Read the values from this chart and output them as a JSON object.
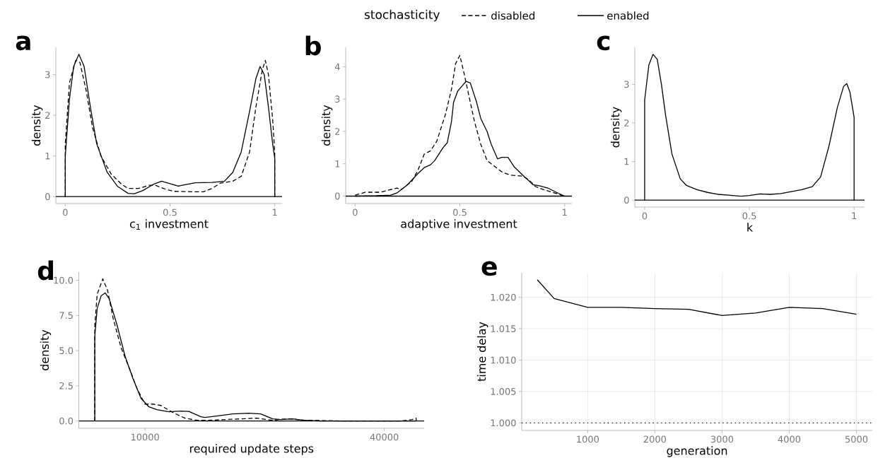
{
  "chart_data": [
    {
      "type": "line",
      "title": "a",
      "xlabel": "c$_{1}$  investment",
      "ylabel": "density",
      "xlim": [
        -0.045,
        1.035
      ],
      "ylim": [
        -0.17,
        3.67
      ],
      "xticks": [
        0,
        0.5,
        1
      ],
      "yticks": [
        0,
        1,
        2,
        3
      ],
      "legend": "top",
      "legend_title": "stochasticity",
      "ref_lines": [
        {
          "axis": "y",
          "value": 0,
          "line_style": "solid",
          "color": "#000000"
        }
      ],
      "series": [
        {
          "name": "disabled",
          "color": "#000000",
          "line_style": "dashed",
          "x": [
            0,
            0,
            0.02,
            0.05,
            0.07,
            0.1,
            0.13,
            0.17,
            0.22,
            0.27,
            0.3,
            0.35,
            0.4,
            0.43,
            0.48,
            0.52,
            0.6,
            0.66,
            0.7,
            0.74,
            0.8,
            0.84,
            0.88,
            0.91,
            0.94,
            0.955,
            0.97,
            0.99,
            1.0,
            1.0
          ],
          "values": [
            0,
            1.3,
            2.8,
            3.35,
            3.3,
            2.6,
            1.7,
            1.0,
            0.55,
            0.3,
            0.2,
            0.2,
            0.28,
            0.28,
            0.18,
            0.13,
            0.12,
            0.12,
            0.2,
            0.33,
            0.38,
            0.5,
            1.1,
            2.2,
            3.1,
            3.35,
            3.0,
            1.9,
            1.1,
            0
          ]
        },
        {
          "name": "enabled",
          "color": "#000000",
          "line_style": "solid",
          "x": [
            0,
            0,
            0.02,
            0.04,
            0.065,
            0.09,
            0.12,
            0.15,
            0.2,
            0.25,
            0.3,
            0.33,
            0.37,
            0.42,
            0.46,
            0.5,
            0.54,
            0.58,
            0.62,
            0.7,
            0.76,
            0.8,
            0.84,
            0.88,
            0.91,
            0.93,
            0.95,
            0.97,
            0.99,
            1.0,
            1.0
          ],
          "values": [
            0,
            1.0,
            2.4,
            3.2,
            3.5,
            3.2,
            2.2,
            1.3,
            0.6,
            0.25,
            0.08,
            0.07,
            0.15,
            0.3,
            0.38,
            0.32,
            0.26,
            0.3,
            0.34,
            0.35,
            0.38,
            0.6,
            1.1,
            2.1,
            2.9,
            3.2,
            3.0,
            2.2,
            1.3,
            0.95,
            0
          ]
        }
      ]
    },
    {
      "type": "line",
      "title": "b",
      "xlabel": "adaptive investment",
      "ylabel": "density",
      "xlim": [
        -0.045,
        1.035
      ],
      "ylim": [
        -0.23,
        4.6
      ],
      "xticks": [
        0,
        0.5,
        1
      ],
      "yticks": [
        0,
        1,
        2,
        3,
        4
      ],
      "ref_lines": [
        {
          "axis": "y",
          "value": 0,
          "line_style": "solid",
          "color": "#000000"
        }
      ],
      "series": [
        {
          "color": "#000000",
          "line_style": "dashed",
          "x": [
            0,
            0.05,
            0.12,
            0.2,
            0.22,
            0.27,
            0.3,
            0.33,
            0.36,
            0.39,
            0.43,
            0.46,
            0.48,
            0.5,
            0.52,
            0.54,
            0.57,
            0.6,
            0.63,
            0.66,
            0.7,
            0.74,
            0.8,
            0.83,
            0.86,
            0.9,
            0.95,
            1.0
          ],
          "values": [
            0.03,
            0.12,
            0.12,
            0.25,
            0.2,
            0.45,
            0.8,
            1.3,
            1.4,
            1.7,
            2.5,
            3.3,
            4.1,
            4.35,
            3.8,
            3.2,
            2.3,
            1.6,
            1.1,
            0.95,
            0.75,
            0.65,
            0.62,
            0.5,
            0.3,
            0.2,
            0.1,
            0.0
          ]
        },
        {
          "color": "#000000",
          "line_style": "solid",
          "x": [
            0,
            0.1,
            0.17,
            0.2,
            0.25,
            0.3,
            0.33,
            0.36,
            0.38,
            0.42,
            0.44,
            0.46,
            0.47,
            0.49,
            0.51,
            0.53,
            0.55,
            0.58,
            0.6,
            0.63,
            0.65,
            0.68,
            0.7,
            0.73,
            0.76,
            0.8,
            0.85,
            0.88,
            0.92,
            0.96,
            1.0
          ],
          "values": [
            0,
            0.01,
            0.03,
            0.1,
            0.35,
            0.7,
            0.88,
            0.97,
            1.1,
            1.5,
            1.65,
            2.3,
            2.9,
            3.25,
            3.4,
            3.55,
            3.5,
            2.9,
            2.4,
            2.0,
            1.6,
            1.15,
            1.2,
            1.2,
            0.9,
            0.65,
            0.35,
            0.32,
            0.25,
            0.12,
            0.0
          ]
        }
      ]
    },
    {
      "type": "line",
      "title": "c",
      "xlabel": "k",
      "ylabel": "density",
      "xlim": [
        -0.047,
        1.05
      ],
      "ylim": [
        -0.18,
        3.96
      ],
      "xticks": [
        0,
        0.5,
        1
      ],
      "yticks": [
        0,
        1,
        2,
        3
      ],
      "ref_lines": [
        {
          "axis": "y",
          "value": 0,
          "line_style": "solid",
          "color": "#000000"
        }
      ],
      "series": [
        {
          "color": "#000000",
          "line_style": "solid",
          "x": [
            0,
            0,
            0.02,
            0.04,
            0.06,
            0.08,
            0.1,
            0.13,
            0.17,
            0.2,
            0.25,
            0.3,
            0.35,
            0.4,
            0.46,
            0.5,
            0.55,
            0.6,
            0.65,
            0.7,
            0.75,
            0.8,
            0.84,
            0.88,
            0.92,
            0.95,
            0.965,
            0.98,
            1.0,
            1.0
          ],
          "values": [
            0,
            2.6,
            3.5,
            3.78,
            3.65,
            3.0,
            2.2,
            1.2,
            0.55,
            0.38,
            0.27,
            0.2,
            0.15,
            0.13,
            0.1,
            0.12,
            0.16,
            0.15,
            0.17,
            0.22,
            0.27,
            0.35,
            0.6,
            1.4,
            2.4,
            2.95,
            3.02,
            2.8,
            2.15,
            0
          ]
        }
      ]
    },
    {
      "type": "line",
      "title": "d",
      "xlabel": "required update steps",
      "ylabel": "density",
      "xlim": [
        1700,
        45000
      ],
      "ylim": [
        -0.52,
        10.58
      ],
      "xticks": [
        10000,
        40000
      ],
      "yticks": [
        {
          "value": 0,
          "label": "0.0"
        },
        {
          "value": 2.5,
          "label": "2.5"
        },
        {
          "value": 5,
          "label": "5.0"
        },
        {
          "value": 7.5,
          "label": "7.5"
        },
        {
          "value": 10,
          "label": "10.0"
        }
      ],
      "ref_lines": [
        {
          "axis": "y",
          "value": 0,
          "line_style": "solid",
          "color": "#000000"
        }
      ],
      "series": [
        {
          "color": "#000000",
          "line_style": "dashed",
          "x": [
            3700,
            3700,
            4000,
            4700,
            5300,
            6000,
            7000,
            8000,
            9000,
            10000,
            11000,
            12000,
            13500,
            15000,
            16500,
            18000,
            20000,
            22000,
            24000,
            26000,
            27000,
            28000,
            30000,
            35000,
            42000,
            43500,
            44000,
            44000
          ],
          "values": [
            0,
            6.8,
            9.0,
            10.1,
            9.3,
            7.3,
            5.2,
            3.8,
            2.3,
            1.2,
            1.2,
            1.1,
            0.6,
            0.2,
            0.05,
            0.05,
            0.1,
            0.15,
            0.2,
            0.05,
            0.12,
            0.15,
            0.05,
            0.0,
            0.0,
            0.1,
            0.2,
            0
          ]
        },
        {
          "color": "#000000",
          "line_style": "solid",
          "x": [
            3700,
            3700,
            4000,
            4500,
            5000,
            5500,
            6500,
            7500,
            8500,
            9500,
            10500,
            11500,
            13000,
            14500,
            15500,
            17000,
            17500,
            19000,
            21000,
            23000,
            24500,
            26000,
            27000,
            28500,
            30000,
            32000,
            44000
          ],
          "values": [
            0,
            6.0,
            8.0,
            8.9,
            9.1,
            8.7,
            6.8,
            4.6,
            3.0,
            1.6,
            1.0,
            0.8,
            0.65,
            0.7,
            0.68,
            0.3,
            0.25,
            0.35,
            0.5,
            0.55,
            0.5,
            0.15,
            0.1,
            0.15,
            0.05,
            0.0,
            0.0
          ]
        }
      ]
    },
    {
      "type": "line",
      "title": "e",
      "xlabel": "generation",
      "ylabel": "time delay",
      "xlim": [
        18,
        5237
      ],
      "ylim": [
        0.9988,
        1.0239
      ],
      "xticks": [
        1000,
        2000,
        3000,
        4000,
        5000
      ],
      "yticks": [
        {
          "value": 1.0,
          "label": "1.000"
        },
        {
          "value": 1.005,
          "label": "1.005"
        },
        {
          "value": 1.01,
          "label": "1.010"
        },
        {
          "value": 1.015,
          "label": "1.015"
        },
        {
          "value": 1.02,
          "label": "1.020"
        }
      ],
      "grid": true,
      "ref_lines": [
        {
          "axis": "y",
          "value": 1.0,
          "line_style": "dotted",
          "color": "#000000"
        }
      ],
      "series": [
        {
          "color": "#000000",
          "line_style": "solid",
          "x": [
            250,
            500,
            1000,
            1500,
            2000,
            2500,
            3000,
            3500,
            4000,
            4500,
            5000
          ],
          "values": [
            1.0228,
            1.0198,
            1.0184,
            1.0184,
            1.0182,
            1.0181,
            1.0171,
            1.0175,
            1.0184,
            1.0182,
            1.0173
          ]
        }
      ]
    }
  ]
}
